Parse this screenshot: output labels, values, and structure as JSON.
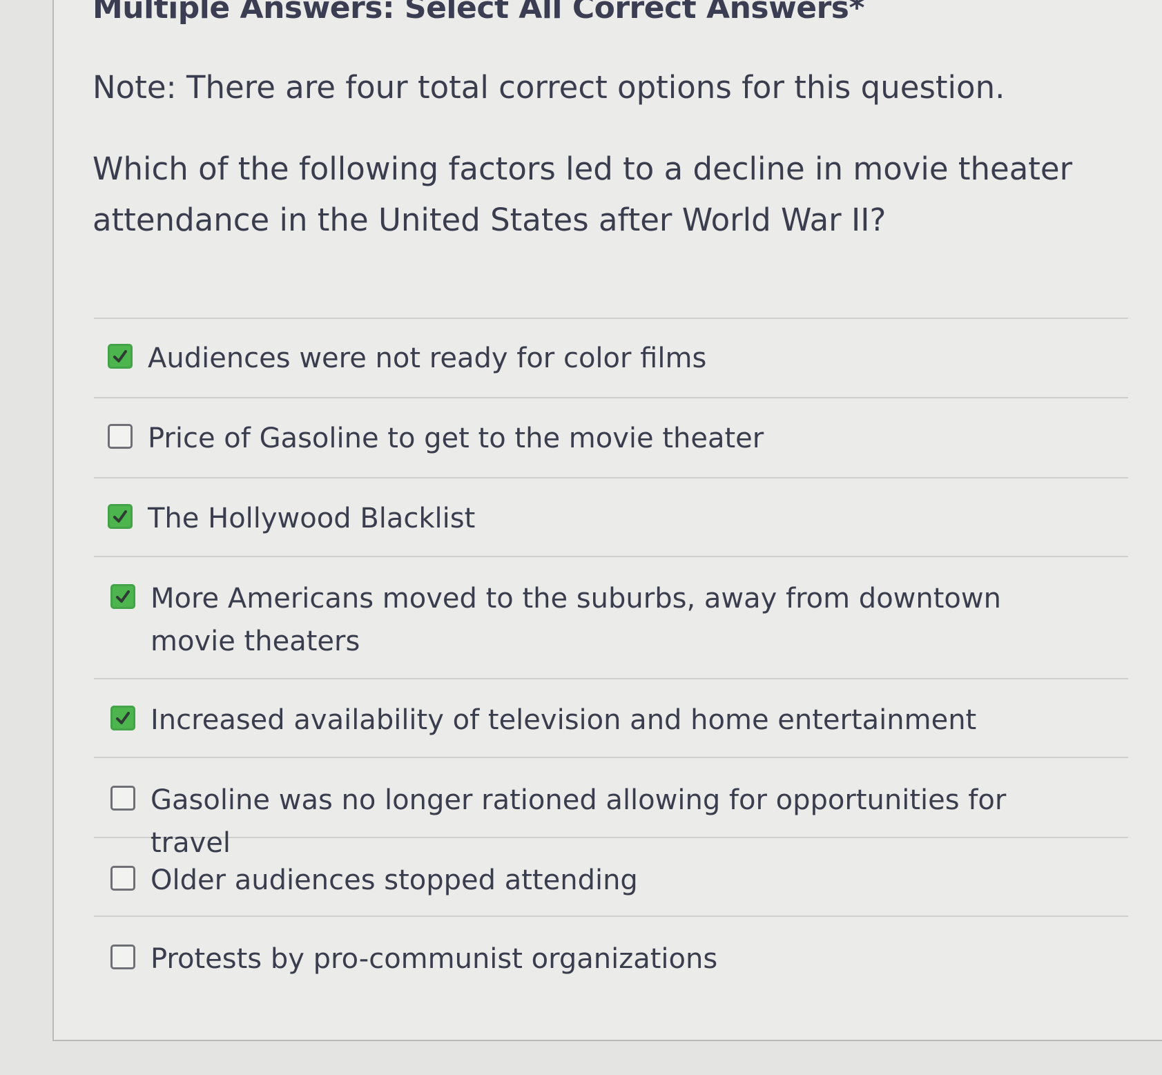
{
  "header": {
    "title": "Multiple Answers: Select All Correct Answers*",
    "note": "Note: There are four total correct options for this question."
  },
  "question": "Which of the following factors led to a decline in movie theater attendance in the United States after World War II?",
  "colors": {
    "checked": "#4db54e",
    "text": "#3a3d4e",
    "background": "#e4e4e2"
  },
  "options": [
    {
      "label": "Audiences were not ready for color films",
      "checked": true
    },
    {
      "label": "Price of Gasoline to get to the movie theater",
      "checked": false
    },
    {
      "label": "The Hollywood Blacklist",
      "checked": true
    },
    {
      "label": "More Americans moved to the suburbs, away from downtown movie theaters",
      "checked": true
    },
    {
      "label": "Increased availability of television and home entertainment",
      "checked": true
    },
    {
      "label": "Gasoline was no longer rationed allowing for opportunities for travel",
      "checked": false
    },
    {
      "label": "Older audiences stopped attending",
      "checked": false
    },
    {
      "label": "Protests by pro-communist organizations",
      "checked": false
    }
  ]
}
